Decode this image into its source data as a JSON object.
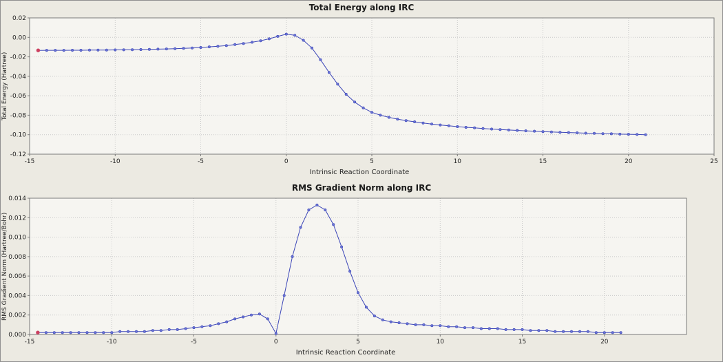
{
  "window": {
    "bg": "#eceae2",
    "plot_bg": "#f6f5f1",
    "grid_color": "#c9c9c9",
    "frame_color": "#7a7a7a",
    "text_color": "#222222"
  },
  "chart_data": [
    {
      "type": "line",
      "title": "Total Energy along IRC",
      "xlabel": "Intrinsic Reaction Coordinate",
      "ylabel": "Total Energy (Hartree)",
      "xlim": [
        -15,
        25
      ],
      "ylim": [
        -0.12,
        0.02
      ],
      "xticks": [
        -15,
        -10,
        -5,
        0,
        5,
        10,
        15,
        20,
        25
      ],
      "xticklabels": [
        "-15",
        "-10",
        "-5",
        "0",
        "5",
        "10",
        "15",
        "20",
        "25"
      ],
      "yticks": [
        0.02,
        0.0,
        -0.02,
        -0.04,
        -0.06,
        -0.08,
        -0.1,
        -0.12
      ],
      "yticklabels": [
        "0.02",
        "0.00",
        "-0.02",
        "-0.04",
        "-0.06",
        "-0.08",
        "-0.10",
        "-0.12"
      ],
      "grid": true,
      "legend": "none",
      "line_color": "#3c46b8",
      "marker_color": "#6a74d4",
      "first_point_color": "#cc4060",
      "x": [
        -14.5,
        -14,
        -13.5,
        -13,
        -12.5,
        -12,
        -11.5,
        -11,
        -10.5,
        -10,
        -9.5,
        -9,
        -8.5,
        -8,
        -7.5,
        -7,
        -6.5,
        -6,
        -5.5,
        -5,
        -4.5,
        -4,
        -3.5,
        -3,
        -2.5,
        -2,
        -1.5,
        -1,
        -0.5,
        0,
        0.5,
        1,
        1.5,
        2,
        2.5,
        3,
        3.5,
        4,
        4.5,
        5,
        5.5,
        6,
        6.5,
        7,
        7.5,
        8,
        8.5,
        9,
        9.5,
        10,
        10.5,
        11,
        11.5,
        12,
        12.5,
        13,
        13.5,
        14,
        14.5,
        15,
        15.5,
        16,
        16.5,
        17,
        17.5,
        18,
        18.5,
        19,
        19.5,
        20,
        20.5,
        21
      ],
      "y": [
        -0.0134,
        -0.0133,
        -0.0133,
        -0.0133,
        -0.0132,
        -0.0132,
        -0.0131,
        -0.0131,
        -0.013,
        -0.0129,
        -0.0128,
        -0.0127,
        -0.0125,
        -0.0124,
        -0.0121,
        -0.0119,
        -0.0116,
        -0.0113,
        -0.0109,
        -0.0104,
        -0.0098,
        -0.0092,
        -0.0084,
        -0.0074,
        -0.0063,
        -0.005,
        -0.0035,
        -0.0015,
        0.001,
        0.0033,
        0.0022,
        -0.003,
        -0.011,
        -0.023,
        -0.036,
        -0.048,
        -0.0585,
        -0.0665,
        -0.0725,
        -0.077,
        -0.08,
        -0.0822,
        -0.084,
        -0.0855,
        -0.0868,
        -0.088,
        -0.089,
        -0.09,
        -0.0909,
        -0.0917,
        -0.0924,
        -0.093,
        -0.0936,
        -0.0942,
        -0.0947,
        -0.0952,
        -0.0956,
        -0.096,
        -0.0964,
        -0.0968,
        -0.0972,
        -0.0975,
        -0.0978,
        -0.0981,
        -0.0984,
        -0.0986,
        -0.0989,
        -0.0991,
        -0.0994,
        -0.0996,
        -0.0998,
        -0.1
      ]
    },
    {
      "type": "line",
      "title": "RMS Gradient Norm along IRC",
      "xlabel": "Intrinsic Reaction Coordinate",
      "ylabel": "RMS Gradient Norm (Hartree/Bohr)",
      "xlim": [
        -15,
        25
      ],
      "ylim": [
        0.0,
        0.014
      ],
      "xticks": [
        -15,
        -10,
        -5,
        0,
        5,
        10,
        15,
        20
      ],
      "xticklabels": [
        "-15",
        "-10",
        "-5",
        "0",
        "5",
        "10",
        "15",
        "20"
      ],
      "yticks": [
        0.014,
        0.012,
        0.01,
        0.008,
        0.006,
        0.004,
        0.002,
        0.0
      ],
      "yticklabels": [
        "0.014",
        "0.012",
        "0.010",
        "0.008",
        "0.006",
        "0.004",
        "0.002",
        "0.000"
      ],
      "grid": true,
      "legend": "none",
      "line_color": "#3c46b8",
      "marker_color": "#6a74d4",
      "first_point_color": "#cc4060",
      "x": [
        -14.5,
        -14,
        -13.5,
        -13,
        -12.5,
        -12,
        -11.5,
        -11,
        -10.5,
        -10,
        -9.5,
        -9,
        -8.5,
        -8,
        -7.5,
        -7,
        -6.5,
        -6,
        -5.5,
        -5,
        -4.5,
        -4,
        -3.5,
        -3,
        -2.5,
        -2,
        -1.5,
        -1,
        -0.5,
        0,
        0.5,
        1,
        1.5,
        2,
        2.5,
        3,
        3.5,
        4,
        4.5,
        5,
        5.5,
        6,
        6.5,
        7,
        7.5,
        8,
        8.5,
        9,
        9.5,
        10,
        10.5,
        11,
        11.5,
        12,
        12.5,
        13,
        13.5,
        14,
        14.5,
        15,
        15.5,
        16,
        16.5,
        17,
        17.5,
        18,
        18.5,
        19,
        19.5,
        20,
        20.5,
        21
      ],
      "y": [
        0.0002,
        0.0002,
        0.0002,
        0.0002,
        0.0002,
        0.0002,
        0.0002,
        0.0002,
        0.0002,
        0.0002,
        0.0003,
        0.0003,
        0.0003,
        0.0003,
        0.0004,
        0.0004,
        0.0005,
        0.0005,
        0.0006,
        0.0007,
        0.0008,
        0.0009,
        0.0011,
        0.0013,
        0.0016,
        0.0018,
        0.002,
        0.0021,
        0.0016,
        0.0001,
        0.004,
        0.008,
        0.011,
        0.0128,
        0.0133,
        0.0128,
        0.0113,
        0.009,
        0.0065,
        0.0043,
        0.0028,
        0.0019,
        0.0015,
        0.0013,
        0.0012,
        0.0011,
        0.001,
        0.001,
        0.0009,
        0.0009,
        0.0008,
        0.0008,
        0.0007,
        0.0007,
        0.0006,
        0.0006,
        0.0006,
        0.0005,
        0.0005,
        0.0005,
        0.0004,
        0.0004,
        0.0004,
        0.0003,
        0.0003,
        0.0003,
        0.0003,
        0.0003,
        0.0002,
        0.0002,
        0.0002,
        0.0002
      ]
    }
  ]
}
